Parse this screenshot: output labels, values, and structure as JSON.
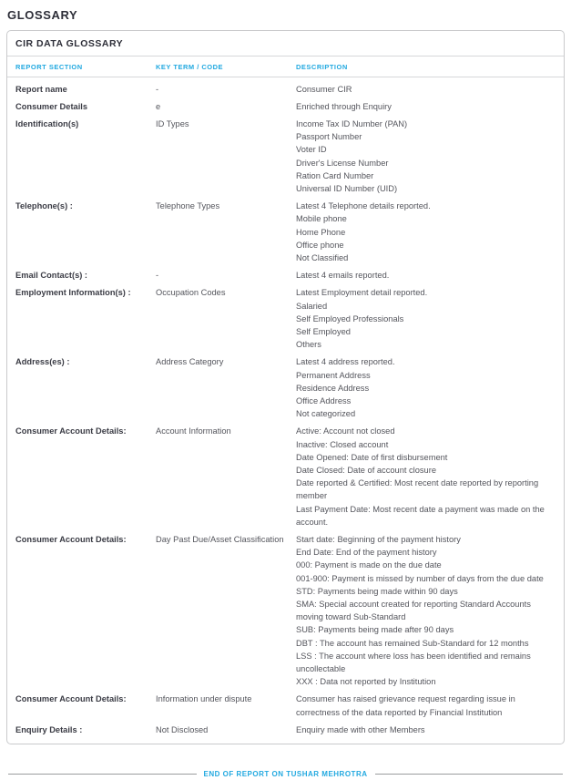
{
  "page": {
    "title": "GLOSSARY"
  },
  "glossary": {
    "title": "CIR DATA GLOSSARY",
    "columns": [
      "REPORT SECTION",
      "KEY TERM / CODE",
      "DESCRIPTION"
    ],
    "rows": [
      {
        "section": "Report name",
        "key": "-",
        "desc": [
          "Consumer CIR"
        ]
      },
      {
        "section": "Consumer Details",
        "key": "e",
        "desc": [
          "Enriched through Enquiry"
        ]
      },
      {
        "section": "Identification(s)",
        "key": "ID Types",
        "desc": [
          "Income Tax ID Number (PAN)",
          "Passport Number",
          "Voter ID",
          "Driver's License Number",
          "Ration Card Number",
          "Universal ID Number (UID)"
        ]
      },
      {
        "section": "Telephone(s) :",
        "key": "Telephone Types",
        "desc": [
          "Latest 4 Telephone details reported.",
          "Mobile phone",
          "Home Phone",
          "Office phone",
          "Not Classified"
        ]
      },
      {
        "section": "Email Contact(s) :",
        "key": "-",
        "desc": [
          "Latest 4 emails reported."
        ]
      },
      {
        "section": "Employment Information(s) :",
        "key": "Occupation Codes",
        "desc": [
          "Latest Employment detail reported.",
          "Salaried",
          "Self Employed Professionals",
          "Self Employed",
          "Others"
        ]
      },
      {
        "section": "Address(es) :",
        "key": "Address Category",
        "desc": [
          "Latest 4 address reported.",
          "Permanent Address",
          "Residence Address",
          "Office Address",
          "Not categorized"
        ]
      },
      {
        "section": "Consumer Account Details:",
        "key": "Account Information",
        "desc": [
          "Active: Account not closed",
          "Inactive: Closed account",
          "Date Opened: Date of first disbursement",
          "Date Closed: Date of account closure",
          "Date reported & Certified: Most recent date reported by reporting member",
          "Last Payment Date: Most recent date a payment was made on the account."
        ]
      },
      {
        "section": "Consumer Account Details:",
        "key": "Day Past Due/Asset Classification",
        "desc": [
          "Start date: Beginning of the payment history",
          "End Date: End of the payment history",
          "000: Payment is made on the due date",
          "001-900: Payment is missed by number of days from the due date",
          "STD: Payments being made within 90 days",
          "SMA: Special account created for reporting Standard Accounts moving toward Sub-Standard",
          "SUB: Payments being made after 90 days",
          "DBT : The account has remained Sub-Standard for 12 months",
          "LSS : The account where loss has been identified and remains uncollectable",
          "XXX : Data not reported by Institution"
        ]
      },
      {
        "section": "Consumer Account Details:",
        "key": "Information under dispute",
        "desc": [
          "Consumer has raised grievance request regarding issue in correctness of the data reported by Financial Institution"
        ]
      },
      {
        "section": "Enquiry Details :",
        "key": "Not Disclosed",
        "desc": [
          "Enquiry made with other Members"
        ]
      }
    ]
  },
  "footer": {
    "text": "END OF REPORT ON TUSHAR MEHROTRA"
  },
  "colors": {
    "accent_cyan": "#22a9e0",
    "heading_dark": "#2d2e38",
    "body_text": "#54555c",
    "card_border": "#c9cacc",
    "footer_rule_gray": "#9b9c9e"
  }
}
